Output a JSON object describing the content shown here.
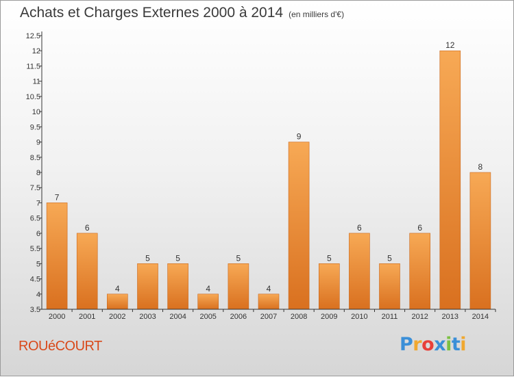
{
  "title": "Achats et Charges Externes 2000 à 2014",
  "subtitle": "(en milliers d'€)",
  "commune": "ROUéCOURT",
  "logo": {
    "letters": [
      "P",
      "r",
      "o",
      "x",
      "i",
      "t",
      "i"
    ],
    "colors": [
      "#3a8fd8",
      "#f0a830",
      "#e8403a",
      "#3a8fd8",
      "#7cc043",
      "#3a8fd8",
      "#f0a830"
    ]
  },
  "colors": {
    "bar_light": "#f7a955",
    "bar_dark": "#d9701f",
    "axis": "#333333"
  },
  "chart_data": {
    "type": "bar",
    "title": "Achats et Charges Externes 2000 à 2014",
    "subtitle": "(en milliers d'€)",
    "xlabel": "",
    "ylabel": "",
    "categories": [
      "2000",
      "2001",
      "2002",
      "2003",
      "2004",
      "2005",
      "2006",
      "2007",
      "2008",
      "2009",
      "2010",
      "2011",
      "2012",
      "2013",
      "2014"
    ],
    "values": [
      7,
      6,
      4,
      5,
      5,
      4,
      5,
      4,
      9,
      5,
      6,
      5,
      6,
      12,
      8
    ],
    "ylim": [
      3.5,
      12.5
    ],
    "yticks": [
      3.5,
      4,
      4.5,
      5,
      5.5,
      6,
      6.5,
      7,
      7.5,
      8,
      8.5,
      9,
      9.5,
      10,
      10.5,
      11,
      11.5,
      12,
      12.5
    ],
    "grid": false,
    "legend": "none"
  }
}
